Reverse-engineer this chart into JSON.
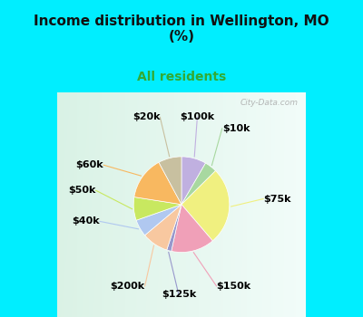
{
  "title": "Income distribution in Wellington, MO\n(%)",
  "subtitle": "All residents",
  "title_color": "#111111",
  "subtitle_color": "#33aa33",
  "bg_cyan": "#00eeff",
  "watermark": "City-Data.com",
  "labels": [
    "$100k",
    "$10k",
    "$75k",
    "$150k",
    "$125k",
    "$200k",
    "$40k",
    "$50k",
    "$60k",
    "$20k"
  ],
  "values": [
    8.0,
    4.0,
    25.0,
    14.0,
    1.5,
    8.5,
    5.5,
    7.5,
    14.0,
    7.5
  ],
  "colors": [
    "#c0b0e0",
    "#a8d8a0",
    "#f0f080",
    "#f0a0b8",
    "#9898cc",
    "#f8c8a0",
    "#b0c8f0",
    "#c8e860",
    "#f8b860",
    "#c8c0a0"
  ],
  "label_fontsize": 8,
  "figsize": [
    4.0,
    3.5
  ],
  "dpi": 100
}
